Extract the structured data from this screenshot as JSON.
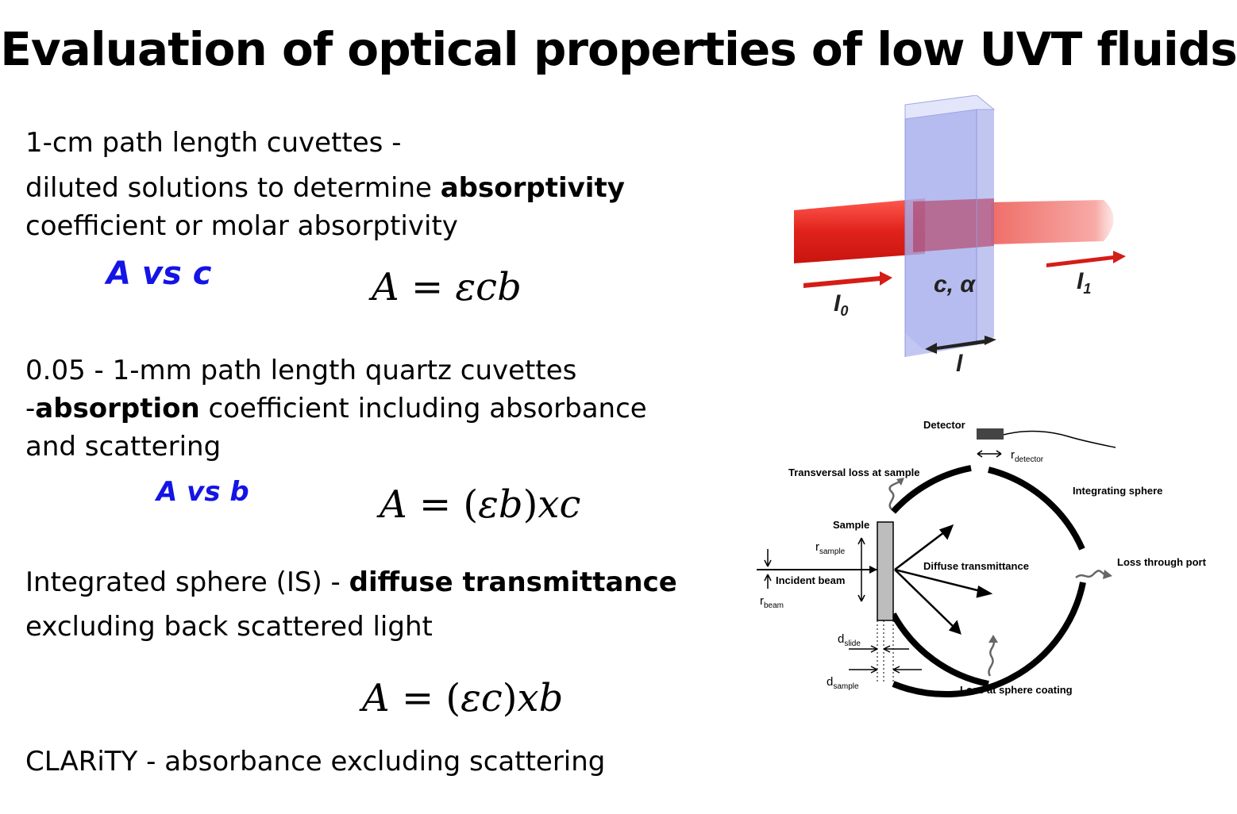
{
  "title": "Evaluation of optical properties of low UVT fluids",
  "section1": {
    "line1": "1-cm path length cuvettes -",
    "line2_pre": "diluted solutions to determine ",
    "line2_bold": "absorptivity",
    "line3": "coefficient or molar absorptivity",
    "relation": "A vs c",
    "eq_lhs": "A",
    "eq_eq": "=",
    "eq_rhs": "εcb"
  },
  "section2": {
    "line1": "0.05 - 1-mm path length quartz cuvettes",
    "line2_pre": "-",
    "line2_bold": "absorption",
    "line2_post": " coefficient  including absorbance",
    "line3": "and scattering",
    "relation": "A vs b",
    "eq_lhs": "A",
    "eq_eq": "=",
    "eq_rhs_open": "(",
    "eq_rhs_inner": "εb",
    "eq_rhs_close": ")",
    "eq_rhs_tail": "xc"
  },
  "section3": {
    "line1_pre": "Integrated sphere (IS) - ",
    "line1_bold": "diffuse transmittance",
    "line2": "excluding back scattered light",
    "eq_lhs": "A",
    "eq_eq": "=",
    "eq_rhs_open": "(",
    "eq_rhs_inner": "εc",
    "eq_rhs_close": ")",
    "eq_rhs_tail": "xb"
  },
  "section4": {
    "line1": "CLARiTY -  absorbance excluding scattering"
  },
  "cuvette_figure": {
    "label_c": "c,",
    "label_alpha": "α",
    "label_I0": "I",
    "label_I0_sub": "0",
    "label_I1": "I",
    "label_I1_sub": "1",
    "label_l": "l",
    "colors": {
      "beam": "#e0231c",
      "cuvette": "#8c95e6"
    }
  },
  "sphere_figure": {
    "detector": "Detector",
    "r_detector": "r",
    "r_detector_sub": "detector",
    "transversal_loss": "Transversal loss at sample",
    "integrating_sphere": "Integrating sphere",
    "sample": "Sample",
    "r_sample": "r",
    "r_sample_sub": "sample",
    "incident_beam": "Incident beam",
    "r_beam": "r",
    "r_beam_sub": "beam",
    "diffuse_transmittance": "Diffuse transmittance",
    "loss_through_port": "Loss through port",
    "d_slide": "d",
    "d_slide_sub": "slide",
    "d_sample": "d",
    "d_sample_sub": "sample",
    "loss_at_coating": "Loss at sphere coating"
  }
}
